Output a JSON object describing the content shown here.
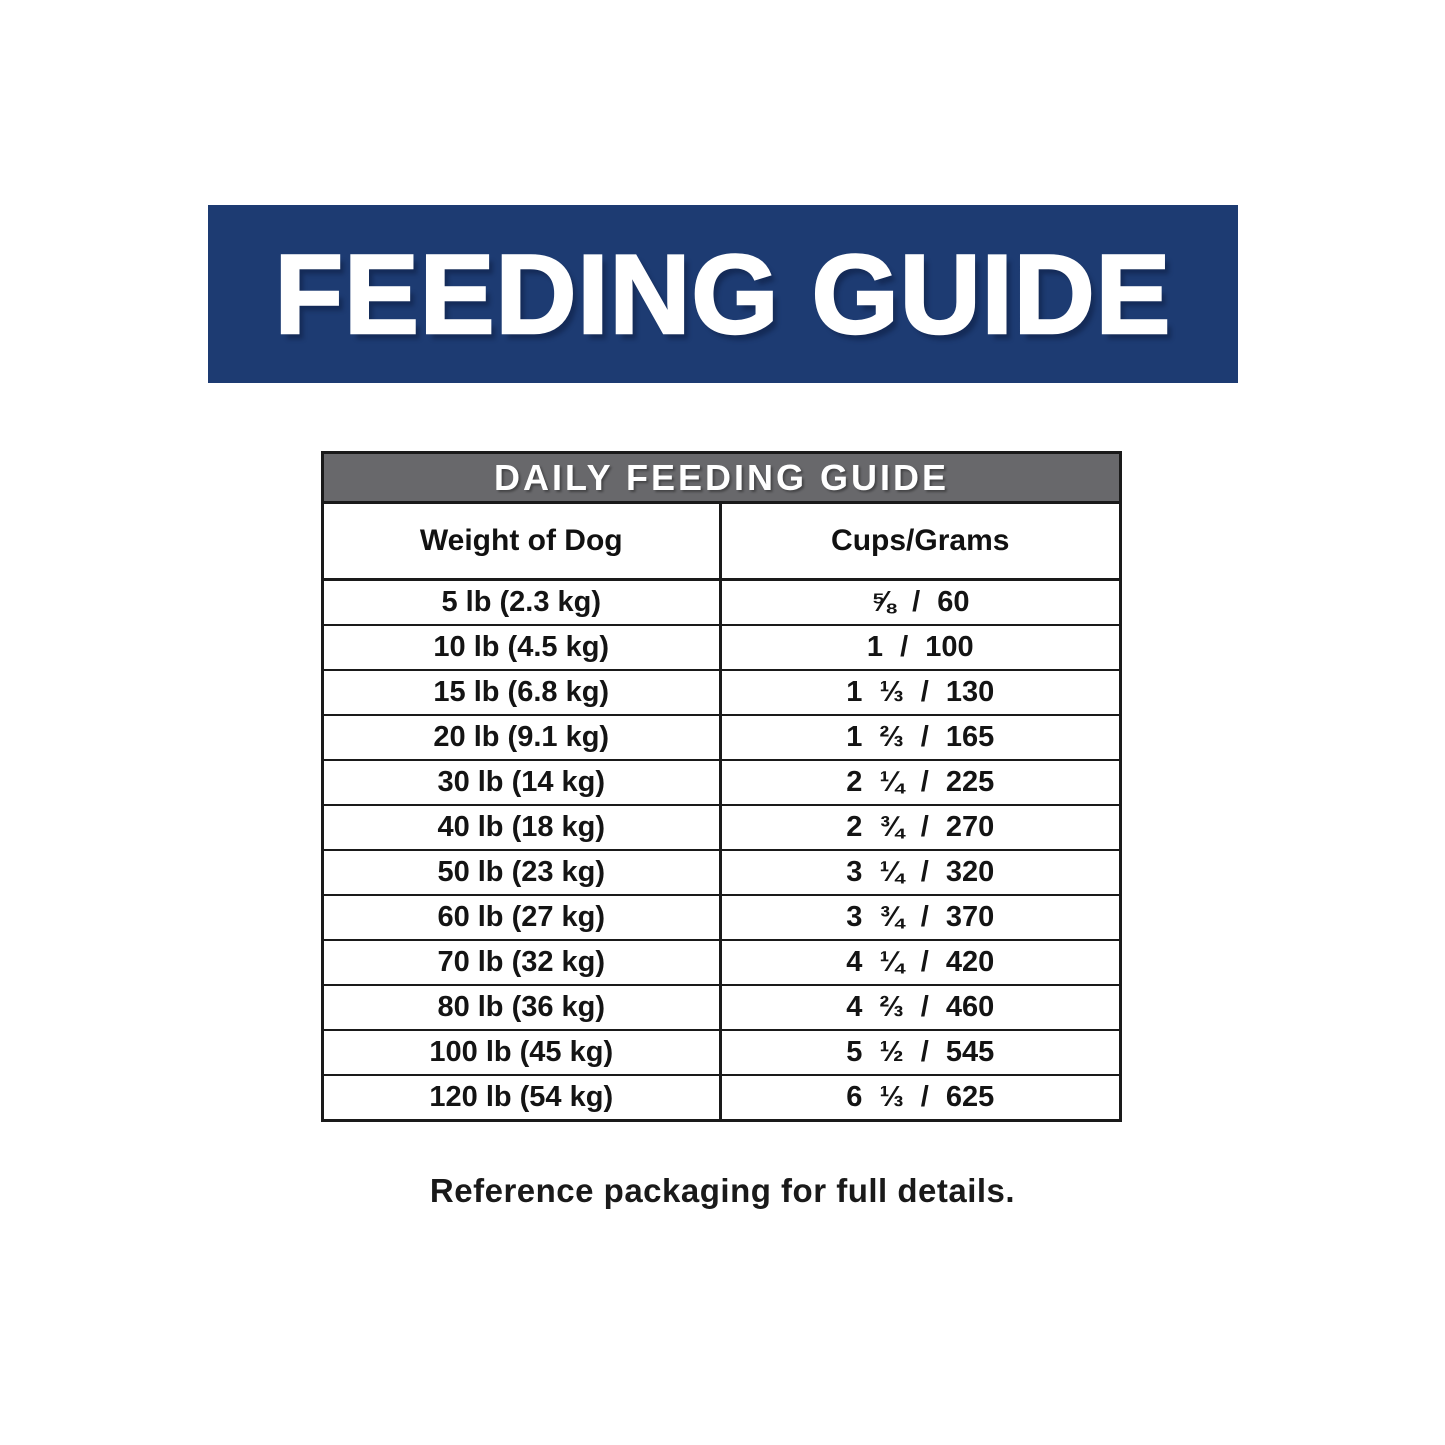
{
  "banner": {
    "title": "FEEDING GUIDE",
    "bg_color": "#1d3b72",
    "text_color": "#ffffff"
  },
  "table": {
    "title": "DAILY FEEDING GUIDE",
    "title_bg_color": "#68686b",
    "border_color": "#1a1a1a",
    "columns": [
      "Weight of Dog",
      "Cups/Grams"
    ],
    "rows": [
      {
        "weight": "5 lb (2.3 kg)",
        "cups_grams": "⅝ / 60"
      },
      {
        "weight": "10 lb (4.5 kg)",
        "cups_grams": "1 / 100"
      },
      {
        "weight": "15 lb (6.8 kg)",
        "cups_grams": "1 ⅓ / 130"
      },
      {
        "weight": "20 lb (9.1 kg)",
        "cups_grams": "1 ⅔ / 165"
      },
      {
        "weight": "30 lb (14 kg)",
        "cups_grams": "2 ¼ / 225"
      },
      {
        "weight": "40 lb (18 kg)",
        "cups_grams": "2 ¾ / 270"
      },
      {
        "weight": "50 lb (23 kg)",
        "cups_grams": "3 ¼ / 320"
      },
      {
        "weight": "60 lb (27 kg)",
        "cups_grams": "3 ¾ / 370"
      },
      {
        "weight": "70 lb (32 kg)",
        "cups_grams": "4 ¼ / 420"
      },
      {
        "weight": "80 lb (36 kg)",
        "cups_grams": "4 ⅔ / 460"
      },
      {
        "weight": "100 lb (45 kg)",
        "cups_grams": "5 ½ / 545"
      },
      {
        "weight": "120 lb (54 kg)",
        "cups_grams": "6 ⅓ / 625"
      }
    ]
  },
  "footer": {
    "note": "Reference packaging for full details."
  },
  "chart_data": {
    "type": "table",
    "title": "DAILY FEEDING GUIDE",
    "columns": [
      "Weight of Dog",
      "Cups/Grams"
    ],
    "rows": [
      [
        "5 lb (2.3 kg)",
        "⅝ / 60"
      ],
      [
        "10 lb (4.5 kg)",
        "1 / 100"
      ],
      [
        "15 lb (6.8 kg)",
        "1 ⅓ / 130"
      ],
      [
        "20 lb (9.1 kg)",
        "1 ⅔ / 165"
      ],
      [
        "30 lb (14 kg)",
        "2 ¼ / 225"
      ],
      [
        "40 lb (18 kg)",
        "2 ¾ / 270"
      ],
      [
        "50 lb (23 kg)",
        "3 ¼ / 320"
      ],
      [
        "60 lb (27 kg)",
        "3 ¾ / 370"
      ],
      [
        "70 lb (32 kg)",
        "4 ¼ / 420"
      ],
      [
        "80 lb (36 kg)",
        "4 ⅔ / 460"
      ],
      [
        "100 lb (45 kg)",
        "5 ½ / 545"
      ],
      [
        "120 lb (54 kg)",
        "6 ⅓ / 625"
      ]
    ],
    "weight_lb": [
      5,
      10,
      15,
      20,
      30,
      40,
      50,
      60,
      70,
      80,
      100,
      120
    ],
    "weight_kg": [
      2.3,
      4.5,
      6.8,
      9.1,
      14,
      18,
      23,
      27,
      32,
      36,
      45,
      54
    ],
    "cups": [
      "⅝",
      "1",
      "1 ⅓",
      "1 ⅔",
      "2 ¼",
      "2 ¾",
      "3 ¼",
      "3 ¾",
      "4 ¼",
      "4 ⅔",
      "5 ½",
      "6 ⅓"
    ],
    "grams": [
      60,
      100,
      130,
      165,
      225,
      270,
      320,
      370,
      420,
      460,
      545,
      625
    ]
  }
}
